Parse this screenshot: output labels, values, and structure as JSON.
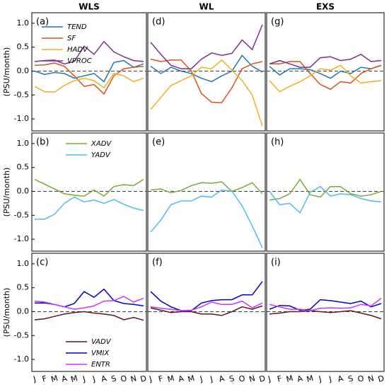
{
  "chart_data": [
    {
      "type": "line",
      "title": "WLS",
      "label": "(a)",
      "ylabel": "(PSU/month)",
      "ylim": [
        -1.25,
        1.22
      ],
      "yticks": [
        {
          "value": -1,
          "label": "-1.0"
        },
        {
          "value": -0.5,
          "label": "-0.5"
        },
        {
          "value": 0,
          "label": "0.0"
        },
        {
          "value": 0.5,
          "label": "0.5"
        },
        {
          "value": 1,
          "label": "1.0"
        }
      ],
      "zero_line": true,
      "legend": "upper left",
      "series": [
        {
          "name": "TEND",
          "color": "#1f77b4",
          "values": [
            0.0,
            -0.07,
            -0.03,
            -0.05,
            -0.15,
            -0.1,
            -0.05,
            -0.22,
            0.18,
            0.22,
            0.08,
            0.15
          ]
        },
        {
          "name": "SF",
          "color": "#d95319",
          "values": [
            0.12,
            0.13,
            0.17,
            0.1,
            -0.1,
            -0.32,
            -0.28,
            -0.48,
            -0.1,
            0.05,
            0.08,
            0.1
          ]
        },
        {
          "name": "HADV",
          "color": "#edb120",
          "values": [
            -0.32,
            -0.43,
            -0.44,
            -0.3,
            -0.2,
            -0.15,
            -0.2,
            -0.35,
            -0.05,
            -0.1,
            -0.22,
            -0.15
          ]
        },
        {
          "name": "VPROC",
          "color": "#7e2f8e",
          "values": [
            0.2,
            0.22,
            0.23,
            0.15,
            0.2,
            0.52,
            0.35,
            0.62,
            0.4,
            0.3,
            0.22,
            0.2
          ]
        }
      ]
    },
    {
      "type": "line",
      "title": "WL",
      "label": "(d)",
      "ylim": [
        -1.25,
        1.22
      ],
      "zero_line": true,
      "series": [
        {
          "color": "#1f77b4",
          "values": [
            0.1,
            -0.05,
            0.08,
            0.0,
            -0.05,
            -0.15,
            -0.22,
            -0.1,
            0.0,
            0.33,
            0.1,
            -0.02
          ]
        },
        {
          "color": "#d95319",
          "values": [
            0.25,
            0.2,
            0.23,
            0.23,
            0.0,
            -0.47,
            -0.65,
            -0.66,
            -0.35,
            0.05,
            0.15,
            0.2
          ]
        },
        {
          "color": "#edb120",
          "values": [
            -0.8,
            -0.55,
            -0.3,
            -0.2,
            -0.1,
            0.08,
            0.05,
            0.23,
            0.02,
            -0.2,
            -0.5,
            -1.15
          ]
        },
        {
          "color": "#7e2f8e",
          "values": [
            0.6,
            0.35,
            0.12,
            0.05,
            0.05,
            0.25,
            0.38,
            0.33,
            0.37,
            0.65,
            0.45,
            0.97
          ]
        }
      ]
    },
    {
      "type": "line",
      "title": "EXS",
      "label": "(g)",
      "ylim": [
        -1.25,
        1.22
      ],
      "zero_line": true,
      "series": [
        {
          "color": "#1f77b4",
          "values": [
            0.1,
            -0.08,
            0.05,
            0.05,
            0.03,
            -0.05,
            -0.15,
            0.0,
            -0.05,
            0.08,
            0.05,
            0.12
          ]
        },
        {
          "color": "#d95319",
          "values": [
            0.15,
            0.15,
            0.2,
            0.2,
            -0.05,
            -0.28,
            -0.38,
            -0.22,
            -0.25,
            -0.05,
            0.05,
            0.12
          ]
        },
        {
          "color": "#edb120",
          "values": [
            -0.2,
            -0.43,
            -0.32,
            -0.22,
            -0.1,
            0.05,
            0.02,
            0.12,
            -0.1,
            -0.25,
            -0.22,
            -0.2
          ]
        },
        {
          "color": "#7e2f8e",
          "values": [
            0.15,
            0.22,
            0.15,
            0.08,
            0.08,
            0.28,
            0.3,
            0.22,
            0.25,
            0.35,
            0.2,
            0.22
          ]
        }
      ]
    },
    {
      "type": "line",
      "label": "(b)",
      "ylabel": "(PSU/month)",
      "ylim": [
        -1.25,
        1.22
      ],
      "yticks": [
        {
          "value": -1,
          "label": "-1.0"
        },
        {
          "value": -0.5,
          "label": "-0.5"
        },
        {
          "value": 0,
          "label": "0.0"
        },
        {
          "value": 0.5,
          "label": "0.5"
        },
        {
          "value": 1,
          "label": "1.0"
        }
      ],
      "zero_line": true,
      "legend": "upper center",
      "series": [
        {
          "name": "XADV",
          "color": "#77ac30",
          "values": [
            0.25,
            0.15,
            0.05,
            -0.05,
            -0.08,
            -0.1,
            0.03,
            -0.1,
            0.1,
            0.14,
            0.12,
            0.25
          ]
        },
        {
          "name": "YADV",
          "color": "#4dbeee",
          "values": [
            -0.58,
            -0.58,
            -0.48,
            -0.25,
            -0.12,
            -0.22,
            -0.18,
            -0.25,
            -0.17,
            -0.27,
            -0.35,
            -0.4
          ]
        }
      ]
    },
    {
      "type": "line",
      "label": "(e)",
      "ylim": [
        -1.25,
        1.22
      ],
      "zero_line": true,
      "series": [
        {
          "color": "#77ac30",
          "values": [
            0.03,
            0.05,
            -0.03,
            0.02,
            0.12,
            0.18,
            0.17,
            0.2,
            0.0,
            0.08,
            0.18,
            -0.05
          ]
        },
        {
          "color": "#4dbeee",
          "values": [
            -0.85,
            -0.6,
            -0.28,
            -0.2,
            -0.2,
            -0.1,
            -0.12,
            0.03,
            0.0,
            -0.3,
            -0.72,
            -1.18
          ]
        }
      ]
    },
    {
      "type": "line",
      "label": "(h)",
      "ylim": [
        -1.25,
        1.22
      ],
      "zero_line": true,
      "series": [
        {
          "color": "#77ac30",
          "values": [
            -0.18,
            -0.15,
            -0.05,
            0.25,
            -0.07,
            -0.12,
            0.1,
            0.1,
            -0.05,
            -0.1,
            -0.07,
            0.0
          ]
        },
        {
          "color": "#4dbeee",
          "values": [
            0.0,
            -0.28,
            -0.25,
            -0.45,
            -0.02,
            0.1,
            -0.1,
            -0.05,
            -0.07,
            -0.15,
            -0.2,
            -0.22
          ]
        }
      ]
    },
    {
      "type": "line",
      "label": "(c)",
      "ylabel": "(PSU/month)",
      "ylim": [
        -1.25,
        1.22
      ],
      "yticks": [
        {
          "value": -1,
          "label": "-1.0"
        },
        {
          "value": -0.5,
          "label": "-0.5"
        },
        {
          "value": 0,
          "label": "0.0"
        },
        {
          "value": 0.5,
          "label": "0.5"
        },
        {
          "value": 1,
          "label": "1.0"
        }
      ],
      "zero_line": true,
      "legend": "lower center",
      "categories": [
        "J",
        "F",
        "M",
        "A",
        "M",
        "J",
        "J",
        "A",
        "S",
        "O",
        "N",
        "D"
      ],
      "series": [
        {
          "name": "VADV",
          "color": "#5b1a1a",
          "values": [
            -0.17,
            -0.15,
            -0.1,
            -0.05,
            -0.02,
            0.0,
            -0.03,
            -0.05,
            -0.08,
            -0.17,
            -0.12,
            -0.18
          ]
        },
        {
          "name": "VMIX",
          "color": "#0000cc",
          "values": [
            0.18,
            0.18,
            0.15,
            0.1,
            0.17,
            0.42,
            0.3,
            0.47,
            0.23,
            0.17,
            0.15,
            0.12
          ]
        },
        {
          "name": "ENTR",
          "color": "#cc33ff",
          "values": [
            0.22,
            0.2,
            0.15,
            0.1,
            0.05,
            0.08,
            0.12,
            0.22,
            0.23,
            0.32,
            0.2,
            0.28
          ]
        }
      ]
    },
    {
      "type": "line",
      "label": "(f)",
      "ylim": [
        -1.25,
        1.22
      ],
      "zero_line": true,
      "categories": [
        "J",
        "F",
        "M",
        "A",
        "M",
        "J",
        "J",
        "A",
        "S",
        "O",
        "N",
        "D"
      ],
      "series": [
        {
          "color": "#5b1a1a",
          "values": [
            0.08,
            0.03,
            -0.02,
            0.0,
            0.0,
            -0.05,
            -0.05,
            -0.08,
            0.0,
            0.1,
            0.05,
            0.12
          ]
        },
        {
          "color": "#0000cc",
          "values": [
            0.42,
            0.22,
            0.1,
            0.02,
            0.02,
            0.18,
            0.23,
            0.25,
            0.25,
            0.35,
            0.35,
            0.63
          ]
        },
        {
          "color": "#cc33ff",
          "values": [
            0.1,
            0.07,
            0.05,
            0.02,
            0.03,
            0.1,
            0.2,
            0.15,
            0.15,
            0.22,
            0.08,
            0.18
          ]
        }
      ]
    },
    {
      "type": "line",
      "label": "(i)",
      "ylim": [
        -1.25,
        1.22
      ],
      "zero_line": true,
      "categories": [
        "J",
        "F",
        "M",
        "A",
        "M",
        "J",
        "J",
        "A",
        "S",
        "O",
        "N",
        "D"
      ],
      "series": [
        {
          "color": "#5b1a1a",
          "values": [
            -0.05,
            -0.03,
            0.0,
            0.0,
            0.02,
            0.0,
            -0.02,
            0.0,
            0.02,
            -0.03,
            -0.08,
            -0.15
          ]
        },
        {
          "color": "#0000cc",
          "values": [
            0.05,
            0.13,
            0.12,
            0.03,
            0.05,
            0.25,
            0.23,
            0.2,
            0.17,
            0.22,
            0.1,
            0.17
          ]
        },
        {
          "color": "#cc33ff",
          "values": [
            0.15,
            0.1,
            0.05,
            0.05,
            0.02,
            0.07,
            0.08,
            0.07,
            0.08,
            0.15,
            0.12,
            0.28
          ]
        }
      ]
    }
  ]
}
